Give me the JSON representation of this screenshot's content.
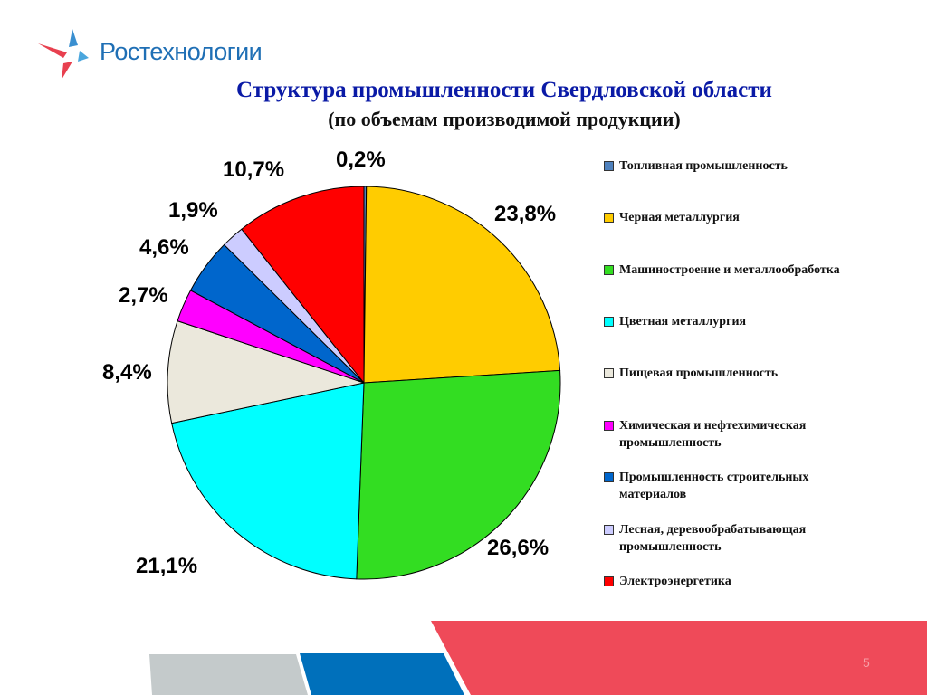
{
  "brand": {
    "name": "Ростехнологии"
  },
  "header": {
    "title": "Структура промышленности Свердловской области",
    "subtitle": "(по объемам производимой продукции)"
  },
  "chart_data": {
    "type": "pie",
    "title": "Структура промышленности Свердловской области",
    "subtitle": "(по объемам производимой продукции)",
    "legend_position": "right",
    "slices": [
      {
        "name": "Топливная промышленность",
        "value": 0.2,
        "label": "0,2%",
        "color": "#4f81bd"
      },
      {
        "name": "Черная металлургия",
        "value": 23.8,
        "label": "23,8%",
        "color": "#ffcc00"
      },
      {
        "name": "Машиностроение и металлообработка",
        "value": 26.6,
        "label": "26,6%",
        "color": "#33dd22"
      },
      {
        "name": "Цветная металлургия",
        "value": 21.1,
        "label": "21,1%",
        "color": "#00ffff"
      },
      {
        "name": "Пищевая промышленность",
        "value": 8.4,
        "label": "8,4%",
        "color": "#ebe8dc"
      },
      {
        "name": "Химическая и нефтехимическая промышленность",
        "value": 2.7,
        "label": "2,7%",
        "color": "#ff00ff"
      },
      {
        "name": "Промышленность строительных материалов",
        "value": 4.6,
        "label": "4,6%",
        "color": "#0066cc"
      },
      {
        "name": "Лесная, деревообрабатывающая промышленность",
        "value": 1.9,
        "label": "1,9%",
        "color": "#ccccff"
      },
      {
        "name": "Электроэнергетика",
        "value": 10.7,
        "label": "10,7%",
        "color": "#ff0000"
      }
    ]
  },
  "footer": {
    "page_number": "5",
    "colors": {
      "gray": "#c4cacb",
      "blue": "#0070bb",
      "red": "#ef4a59"
    }
  }
}
